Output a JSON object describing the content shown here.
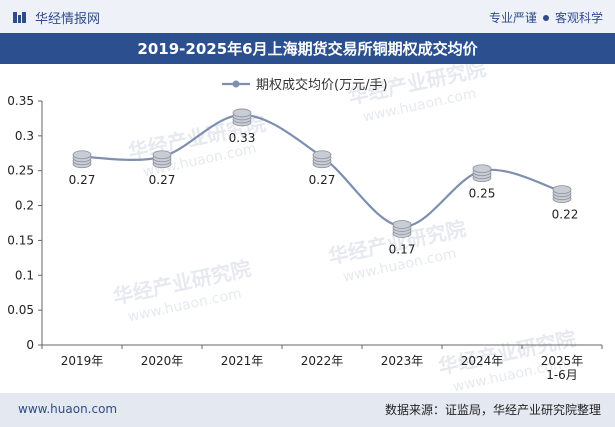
{
  "header": {
    "brand": "华经情报网",
    "tagline_left": "专业严谨",
    "tagline_right": "客观科学"
  },
  "title": "2019-2025年6月上海期货交易所铜期权成交均价",
  "footer": {
    "site": "www.huaon.com",
    "source": "数据来源：证监局，华经产业研究院整理"
  },
  "watermark": {
    "name": "华经产业研究院",
    "url": "www.huaon.com"
  },
  "colors": {
    "line": "#7f8fb0",
    "title_bg": "#2b4f8f",
    "marker": "#c8ccd4"
  },
  "chart_data": {
    "type": "line",
    "title": "2019-2025年6月上海期货交易所铜期权成交均价",
    "categories": [
      "2019年",
      "2020年",
      "2021年",
      "2022年",
      "2023年",
      "2024年",
      "2025年\n1-6月"
    ],
    "series": [
      {
        "name": "期权成交均价(万元/手)",
        "values": [
          0.27,
          0.27,
          0.33,
          0.27,
          0.17,
          0.25,
          0.22
        ]
      }
    ],
    "data_labels": [
      "0.27",
      "0.27",
      "0.33",
      "0.27",
      "0.17",
      "0.25",
      "0.22"
    ],
    "yticks": [
      "0",
      "0.05",
      "0.1",
      "0.15",
      "0.2",
      "0.25",
      "0.3",
      "0.35"
    ],
    "ylim": [
      0,
      0.35
    ],
    "xlabel": "",
    "ylabel": "",
    "legend_position": "top-center",
    "grid": false
  }
}
